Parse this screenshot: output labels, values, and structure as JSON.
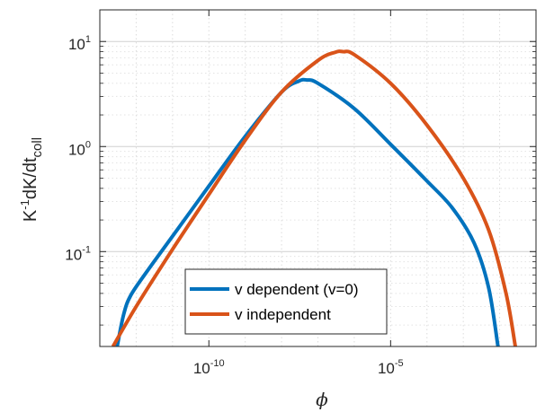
{
  "chart_data": {
    "type": "line",
    "title": "",
    "xscale": "log",
    "yscale": "log",
    "xlim": [
      1e-13,
      0.1
    ],
    "ylim": [
      0.0125,
      20
    ],
    "grid": true,
    "minor_grid": true,
    "legend_position": "bottom-center",
    "x_ticks": [
      {
        "value": 1e-10,
        "base": "10",
        "exp": "-10"
      },
      {
        "value": 1e-05,
        "base": "10",
        "exp": "-5"
      }
    ],
    "y_ticks": [
      {
        "value": 0.1,
        "base": "10",
        "exp": "-1"
      },
      {
        "value": 1,
        "base": "10",
        "exp": "0"
      },
      {
        "value": 10,
        "base": "10",
        "exp": "1"
      }
    ],
    "xlabel": "ϕ",
    "ylabel": {
      "base": "K",
      "sup": "-1",
      "mid": "dK/dt",
      "sub": "coll"
    },
    "series": [
      {
        "name": "v dependent (v=0)",
        "color": "#0072BD",
        "points": [
          [
            3e-13,
            0.0125
          ],
          [
            4.5e-13,
            0.025
          ],
          [
            7e-13,
            0.038
          ],
          [
            2e-12,
            0.065
          ],
          [
            1e-11,
            0.14
          ],
          [
            1e-10,
            0.42
          ],
          [
            1e-09,
            1.25
          ],
          [
            1e-08,
            3.3
          ],
          [
            3e-08,
            4.2
          ],
          [
            5e-08,
            4.3
          ],
          [
            1e-07,
            4.0
          ],
          [
            1e-06,
            2.3
          ],
          [
            1e-05,
            1.05
          ],
          [
            0.0001,
            0.47
          ],
          [
            0.0005,
            0.26
          ],
          [
            0.002,
            0.12
          ],
          [
            0.005,
            0.045
          ],
          [
            0.009,
            0.0125
          ]
        ]
      },
      {
        "name": "v independent",
        "color": "#D95319",
        "points": [
          [
            2.3e-13,
            0.0125
          ],
          [
            1e-12,
            0.03
          ],
          [
            1e-11,
            0.105
          ],
          [
            1e-10,
            0.35
          ],
          [
            1e-09,
            1.15
          ],
          [
            1e-08,
            3.3
          ],
          [
            1e-07,
            6.6
          ],
          [
            3e-07,
            7.9
          ],
          [
            5e-07,
            8.0
          ],
          [
            1e-06,
            7.5
          ],
          [
            1e-05,
            4.0
          ],
          [
            0.0001,
            1.6
          ],
          [
            0.001,
            0.5
          ],
          [
            0.005,
            0.16
          ],
          [
            0.015,
            0.04
          ],
          [
            0.027,
            0.0125
          ]
        ]
      }
    ]
  }
}
